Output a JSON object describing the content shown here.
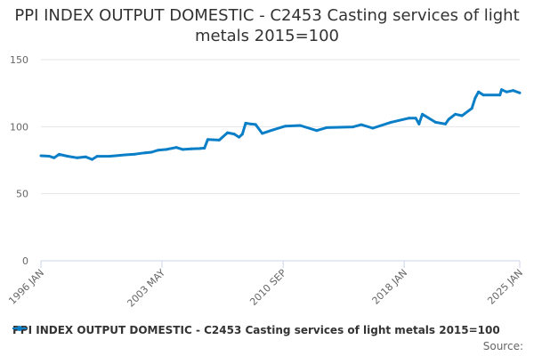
{
  "chart_data": {
    "type": "line",
    "title": "PPI INDEX OUTPUT DOMESTIC - C2453 Casting services of light metals 2015=100",
    "xlabel": "",
    "ylabel": "",
    "ylim": [
      0,
      150
    ],
    "xlim": [
      1996.0,
      2025.0
    ],
    "yticks": [
      0,
      50,
      100,
      150
    ],
    "xtick_labels": [
      {
        "label": "1996 JAN",
        "x": 1996.0
      },
      {
        "label": "2003 MAY",
        "x": 2003.33
      },
      {
        "label": "2010 SEP",
        "x": 2010.67
      },
      {
        "label": "2018 JAN",
        "x": 2018.0
      },
      {
        "label": "2025 JAN",
        "x": 2025.0
      }
    ],
    "grid": true,
    "legend_position": "bottom",
    "series": [
      {
        "name": "PPI INDEX OUTPUT DOMESTIC - C2453 Casting services of light metals 2015=100",
        "color": "#0a7fc7",
        "x": [
          1996.0,
          1996.5,
          1996.8,
          1997.1,
          1997.6,
          1998.2,
          1998.7,
          1999.1,
          1999.4,
          2000.2,
          2001.1,
          2001.7,
          2002.3,
          2002.7,
          2003.1,
          2003.6,
          2004.2,
          2004.6,
          2005.1,
          2005.6,
          2005.9,
          2006.1,
          2006.8,
          2007.3,
          2007.7,
          2008.0,
          2008.2,
          2008.4,
          2008.7,
          2009.0,
          2009.4,
          2010.05,
          2010.8,
          2011.7,
          2012.7,
          2013.3,
          2014.9,
          2015.4,
          2016.1,
          2017.2,
          2018.3,
          2018.7,
          2018.9,
          2019.1,
          2019.9,
          2020.5,
          2020.7,
          2021.1,
          2021.5,
          2022.1,
          2022.3,
          2022.5,
          2022.8,
          2023.8,
          2023.9,
          2024.2,
          2024.6,
          2025.0
        ],
        "values": [
          78.3,
          78.0,
          76.8,
          79.4,
          78.0,
          76.8,
          77.5,
          75.6,
          77.9,
          78.0,
          79.0,
          79.5,
          80.5,
          81.0,
          82.5,
          83.0,
          84.5,
          83.0,
          83.5,
          83.7,
          84.0,
          90.4,
          90.0,
          95.5,
          94.5,
          92.2,
          94.4,
          102.6,
          102.0,
          101.6,
          95.0,
          97.6,
          100.4,
          100.9,
          97.1,
          99.3,
          99.8,
          101.5,
          98.9,
          103.3,
          106.4,
          106.4,
          102.0,
          109.3,
          103.3,
          102.0,
          105.5,
          109.3,
          108.2,
          113.7,
          121.4,
          125.9,
          123.6,
          123.6,
          127.6,
          125.9,
          127.0,
          125.2
        ]
      }
    ]
  },
  "legend": {
    "label": "PPI INDEX OUTPUT DOMESTIC - C2453 Casting services of light metals 2015=100"
  },
  "source_label": "Source:"
}
